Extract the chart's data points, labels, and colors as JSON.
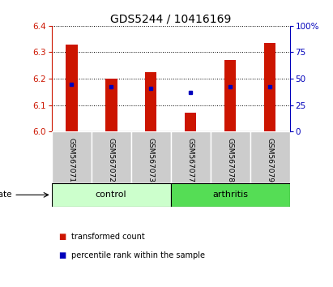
{
  "title": "GDS5244 / 10416169",
  "categories": [
    "GSM567071",
    "GSM567072",
    "GSM567073",
    "GSM567077",
    "GSM567078",
    "GSM567079"
  ],
  "bar_bottoms": [
    6.0,
    6.0,
    6.0,
    6.0,
    6.0,
    6.0
  ],
  "bar_tops": [
    6.33,
    6.2,
    6.225,
    6.07,
    6.27,
    6.335
  ],
  "blue_y": [
    6.18,
    6.168,
    6.163,
    6.148,
    6.168,
    6.168
  ],
  "ylim": [
    6.0,
    6.4
  ],
  "yticks_left": [
    6.0,
    6.1,
    6.2,
    6.3,
    6.4
  ],
  "yticks_right_labels": [
    "0",
    "25",
    "50",
    "75",
    "100%"
  ],
  "bar_color": "#cc1500",
  "blue_color": "#0000bb",
  "control_color": "#ccffcc",
  "arthritis_color": "#55dd55",
  "label_bg": "#cccccc",
  "title_fontsize": 10,
  "tick_fontsize": 7.5,
  "bar_width": 0.3
}
